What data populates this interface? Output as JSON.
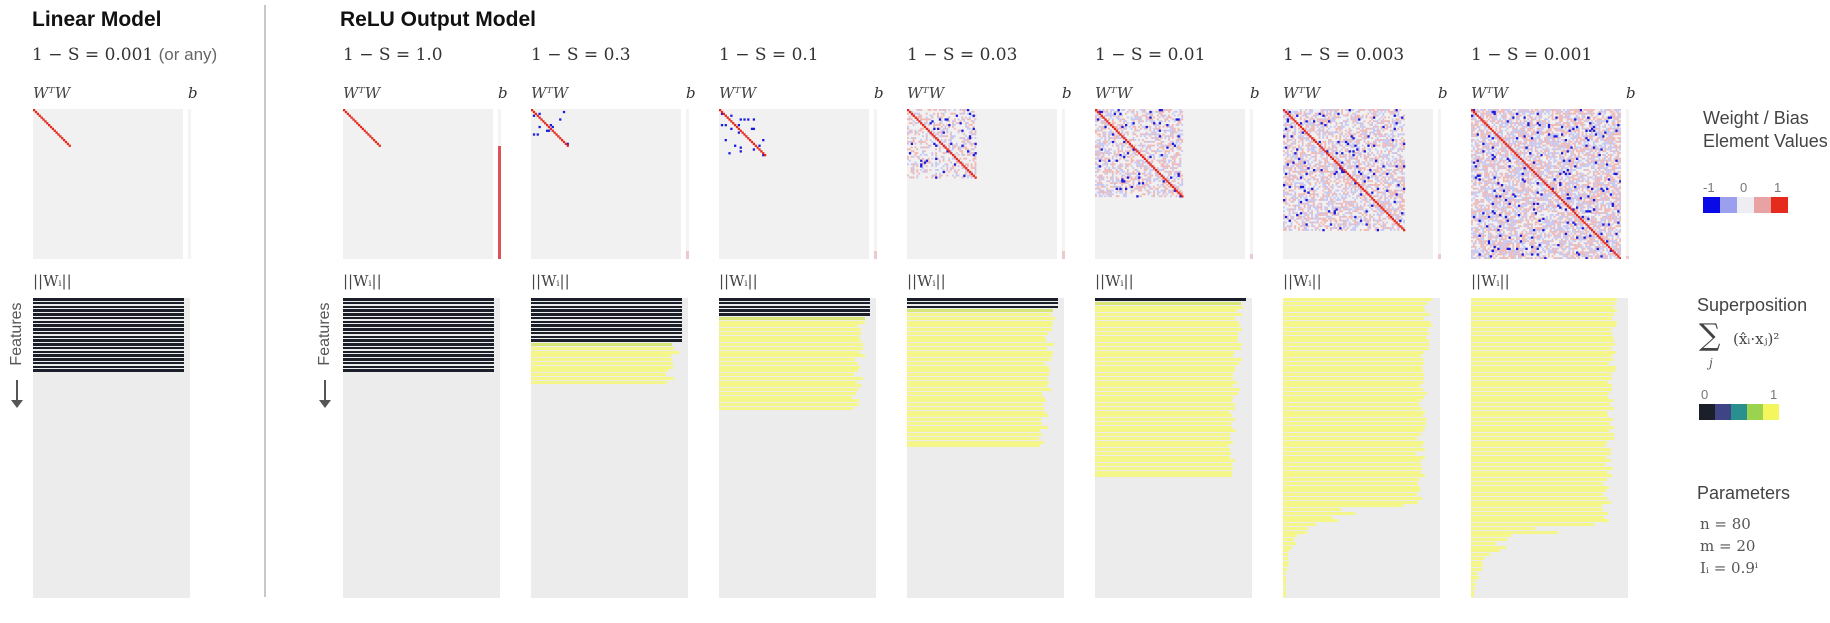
{
  "linear_section": {
    "title": "Linear Model",
    "sparsity": "1 − S = 0.001",
    "sparsity_note": "(or any)"
  },
  "relu_section": {
    "title": "ReLU Output Model",
    "sparsities": [
      "1 − S = 1.0",
      "1 − S = 0.3",
      "1 − S = 0.1",
      "1 − S = 0.03",
      "1 − S = 0.01",
      "1 − S = 0.003",
      "1 − S = 0.001"
    ]
  },
  "labels": {
    "wtw": "WᵀW",
    "bias": "b",
    "norm": "||Wᵢ||",
    "features_axis": "Features"
  },
  "legend": {
    "weight_title": "Weight / Bias Element Values",
    "weight_ticks": [
      "-1",
      "0",
      "1"
    ],
    "weight_colors": [
      "#0a0ae6",
      "#9aa0ee",
      "#eeeef2",
      "#e8a2a2",
      "#e52a1e"
    ],
    "superposition_title": "Superposition",
    "superposition_formula_sum": "∑",
    "superposition_formula_index": "j",
    "superposition_formula": "(x̂ᵢ·xⱼ)²",
    "superposition_ticks": [
      "0",
      "1"
    ],
    "superposition_colors": [
      "#1b1f2a",
      "#3f4584",
      "#2a8f8f",
      "#9bd24e",
      "#f4f65e"
    ],
    "parameters_title": "Parameters",
    "parameters": [
      "n  =  80",
      "m  =  20",
      "Iᵢ  =  0.9ⁱ"
    ]
  },
  "models": [
    {
      "dense": 20,
      "yellow_rows": 0,
      "tail_rows": 0,
      "diag": 20,
      "noise": 0,
      "scatter": 0,
      "bias": 0.0
    },
    {
      "dense": 20,
      "yellow_rows": 0,
      "tail_rows": 0,
      "diag": 20,
      "noise": 0,
      "scatter": 0,
      "bias": 0.75
    },
    {
      "dense": 12,
      "yellow_rows": 11,
      "tail_rows": 0,
      "diag": 20,
      "noise": 0,
      "scatter": 12,
      "bias": 0.05
    },
    {
      "dense": 5,
      "yellow_rows": 25,
      "tail_rows": 0,
      "diag": 25,
      "noise": 0,
      "scatter": 22,
      "bias": 0.05
    },
    {
      "dense": 3,
      "yellow_rows": 37,
      "tail_rows": 0,
      "diag": 37,
      "noise": 0.35,
      "scatter": 40,
      "bias": 0.05
    },
    {
      "dense": 1,
      "yellow_rows": 47,
      "tail_rows": 0,
      "diag": 47,
      "noise": 0.5,
      "scatter": 60,
      "bias": 0.03
    },
    {
      "dense": 0,
      "yellow_rows": 55,
      "tail_rows": 25,
      "diag": 65,
      "noise": 0.55,
      "scatter": 120,
      "bias": 0.03
    },
    {
      "dense": 0,
      "yellow_rows": 60,
      "tail_rows": 20,
      "diag": 80,
      "noise": 0.65,
      "scatter": 220,
      "bias": 0.02
    }
  ]
}
